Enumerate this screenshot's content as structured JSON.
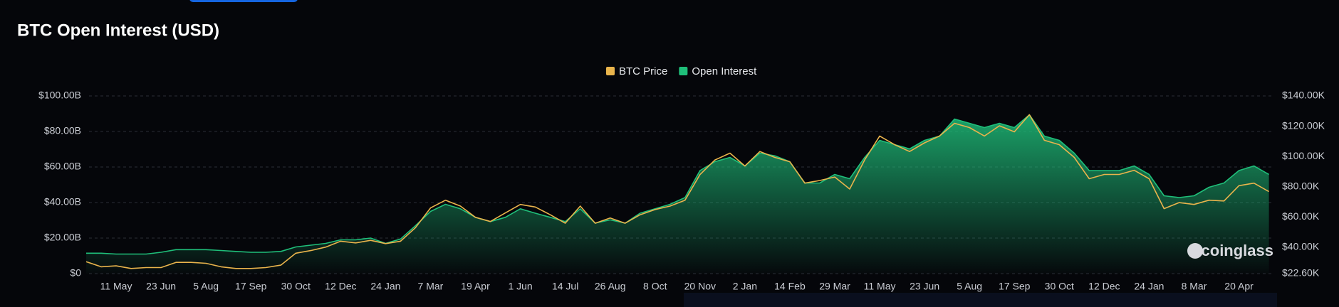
{
  "chart_data": {
    "type": "line",
    "title": "BTC Open Interest (USD)",
    "watermark": "coinglass",
    "legend": "top",
    "grid": true,
    "categories": [
      null,
      null,
      "11 May",
      null,
      null,
      "23 Jun",
      null,
      null,
      "5 Aug",
      null,
      null,
      "17 Sep",
      null,
      null,
      "30 Oct",
      null,
      null,
      "12 Dec",
      null,
      null,
      "24 Jan",
      null,
      null,
      "7 Mar",
      null,
      null,
      "19 Apr",
      null,
      null,
      "1 Jun",
      null,
      null,
      "14 Jul",
      null,
      null,
      "26 Aug",
      null,
      null,
      "8 Oct",
      null,
      null,
      "20 Nov",
      null,
      null,
      "2 Jan",
      null,
      null,
      "14 Feb",
      null,
      null,
      "29 Mar",
      null,
      null,
      "11 May",
      null,
      null,
      "23 Jun",
      null,
      null,
      "5 Aug",
      null,
      null,
      "17 Sep",
      null,
      null,
      "30 Oct",
      null,
      null,
      "12 Dec",
      null,
      null,
      "24 Jan",
      null,
      null,
      "8 Mar",
      null,
      null,
      "20 Apr",
      null,
      null
    ],
    "ylim": [
      0,
      100000000000.0
    ],
    "yticks": [
      {
        "value": 0,
        "label": "$0"
      },
      {
        "value": 20000000000.0,
        "label": "$20.00B"
      },
      {
        "value": 40000000000.0,
        "label": "$40.00B"
      },
      {
        "value": 60000000000.0,
        "label": "$60.00B"
      },
      {
        "value": 80000000000.0,
        "label": "$80.00B"
      },
      {
        "value": 100000000000.0,
        "label": "$100.00B"
      }
    ],
    "y2lim": [
      22600,
      140000
    ],
    "y2ticks": [
      {
        "value": 22600,
        "label": "$22.60K"
      },
      {
        "value": 40000,
        "label": "$40.00K"
      },
      {
        "value": 60000,
        "label": "$60.00K"
      },
      {
        "value": 80000,
        "label": "$80.00K"
      },
      {
        "value": 100000,
        "label": "$100.00K"
      },
      {
        "value": 120000,
        "label": "$120.00K"
      },
      {
        "value": 140000,
        "label": "$140.00K"
      }
    ],
    "series": [
      {
        "name": "BTC Price",
        "color": "#e9b44c",
        "axis": "y2",
        "values": [
          30500,
          27100,
          27700,
          26000,
          26600,
          26600,
          30000,
          30000,
          29400,
          27100,
          26000,
          26000,
          26600,
          28200,
          36100,
          37800,
          40100,
          44000,
          42900,
          44600,
          42400,
          44000,
          53000,
          66000,
          71100,
          67200,
          59800,
          57000,
          62700,
          68300,
          66600,
          61500,
          55900,
          67200,
          55900,
          59300,
          55900,
          61500,
          64900,
          67200,
          71100,
          88000,
          97700,
          102200,
          93700,
          103300,
          99400,
          96500,
          82400,
          84100,
          86400,
          78500,
          97700,
          113500,
          107800,
          103300,
          109000,
          113500,
          121900,
          119100,
          113500,
          120300,
          116300,
          127600,
          110700,
          107800,
          99400,
          85300,
          88100,
          88100,
          90900,
          85300,
          65500,
          69500,
          68300,
          71100,
          70600,
          80700,
          82400,
          76800
        ]
      },
      {
        "name": "Open Interest",
        "color": "#1fbf7a",
        "values": [
          11500000000.0,
          11500000000.0,
          11000000000.0,
          11000000000.0,
          11000000000.0,
          12000000000.0,
          13500000000.0,
          13500000000.0,
          13500000000.0,
          13000000000.0,
          12500000000.0,
          12000000000.0,
          12000000000.0,
          12500000000.0,
          15000000000.0,
          16000000000.0,
          17000000000.0,
          19000000000.0,
          19000000000.0,
          20000000000.0,
          17000000000.0,
          19500000000.0,
          27000000000.0,
          35000000000.0,
          39000000000.0,
          36500000000.0,
          31700000000.0,
          29300000000.0,
          31700000000.0,
          36500000000.0,
          34000000000.0,
          31700000000.0,
          29300000000.0,
          36500000000.0,
          28400000000.0,
          30300000000.0,
          28400000000.0,
          34000000000.0,
          36500000000.0,
          39000000000.0,
          42800000000.0,
          58000000000.0,
          63000000000.0,
          65400000000.0,
          60600000000.0,
          67800000000.0,
          66300000000.0,
          63000000000.0,
          51000000000.0,
          51000000000.0,
          55800000000.0,
          53400000000.0,
          65400000000.0,
          75000000000.0,
          72600000000.0,
          70200000000.0,
          75000000000.0,
          77400000000.0,
          87000000000.0,
          84600000000.0,
          82200000000.0,
          84600000000.0,
          82200000000.0,
          89400000000.0,
          77400000000.0,
          75000000000.0,
          67800000000.0,
          58000000000.0,
          58000000000.0,
          58000000000.0,
          60600000000.0,
          55800000000.0,
          43800000000.0,
          42800000000.0,
          43800000000.0,
          48600000000.0,
          51000000000.0,
          58000000000.0,
          60600000000.0,
          55800000000.0
        ]
      }
    ]
  }
}
